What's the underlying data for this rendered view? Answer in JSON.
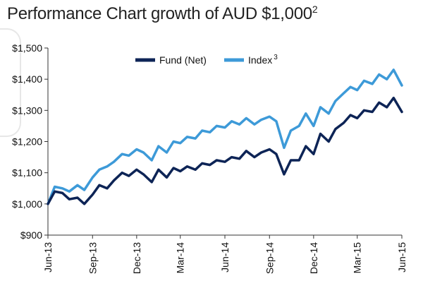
{
  "title": {
    "text": "Performance Chart growth of AUD $1,000",
    "superscript": "2"
  },
  "colors": {
    "fund": "#0d2456",
    "index": "#3d9ad8",
    "axis": "#333333",
    "gridline": "#999999"
  },
  "chart_data": {
    "type": "line",
    "title": "Performance Chart growth of AUD $1,000",
    "xlabel": "",
    "ylabel": "",
    "ylim": [
      900,
      1500
    ],
    "xlim": [
      "2013-06",
      "2015-06"
    ],
    "grid": false,
    "legend_placement": "top-center",
    "y_ticks": [
      "$900",
      "$1,000",
      "$1,100",
      "$1,200",
      "$1,300",
      "$1,400",
      "$1,500"
    ],
    "y_tick_values": [
      900,
      1000,
      1100,
      1200,
      1300,
      1400,
      1500
    ],
    "x_ticks": [
      "Jun-13",
      "Sep-13",
      "Dec-13",
      "Mar-14",
      "Jun-14",
      "Sep-14",
      "Dec-14",
      "Mar-15",
      "Jun-15"
    ],
    "x_tick_values": [
      "2013-06",
      "2013-09",
      "2013-12",
      "2014-03",
      "2014-06",
      "2014-09",
      "2014-12",
      "2015-03",
      "2015-06"
    ],
    "series": [
      {
        "name": "Fund (Net)",
        "name_sup": "",
        "x": [
          "2013-06-01",
          "2013-06-15",
          "2013-07-01",
          "2013-07-15",
          "2013-08-01",
          "2013-08-15",
          "2013-09-01",
          "2013-09-15",
          "2013-10-01",
          "2013-10-15",
          "2013-11-01",
          "2013-11-15",
          "2013-12-01",
          "2013-12-15",
          "2014-01-01",
          "2014-01-15",
          "2014-02-01",
          "2014-02-15",
          "2014-03-01",
          "2014-03-15",
          "2014-04-01",
          "2014-04-15",
          "2014-05-01",
          "2014-05-15",
          "2014-06-01",
          "2014-06-15",
          "2014-07-01",
          "2014-07-15",
          "2014-08-01",
          "2014-08-15",
          "2014-09-01",
          "2014-09-15",
          "2014-10-01",
          "2014-10-15",
          "2014-11-01",
          "2014-11-15",
          "2014-12-01",
          "2014-12-15",
          "2015-01-01",
          "2015-01-15",
          "2015-02-01",
          "2015-02-15",
          "2015-03-01",
          "2015-03-15",
          "2015-04-01",
          "2015-04-15",
          "2015-05-01",
          "2015-05-15",
          "2015-06-01"
        ],
        "values": [
          1000,
          1040,
          1035,
          1015,
          1020,
          1000,
          1030,
          1060,
          1050,
          1075,
          1100,
          1090,
          1110,
          1095,
          1070,
          1110,
          1085,
          1115,
          1105,
          1120,
          1110,
          1130,
          1125,
          1140,
          1135,
          1150,
          1145,
          1170,
          1150,
          1165,
          1175,
          1160,
          1095,
          1140,
          1140,
          1185,
          1160,
          1225,
          1200,
          1240,
          1260,
          1285,
          1275,
          1300,
          1295,
          1325,
          1310,
          1340,
          1295
        ]
      },
      {
        "name": "Index",
        "name_sup": "3",
        "x": [
          "2013-06-01",
          "2013-06-15",
          "2013-07-01",
          "2013-07-15",
          "2013-08-01",
          "2013-08-15",
          "2013-09-01",
          "2013-09-15",
          "2013-10-01",
          "2013-10-15",
          "2013-11-01",
          "2013-11-15",
          "2013-12-01",
          "2013-12-15",
          "2014-01-01",
          "2014-01-15",
          "2014-02-01",
          "2014-02-15",
          "2014-03-01",
          "2014-03-15",
          "2014-04-01",
          "2014-04-15",
          "2014-05-01",
          "2014-05-15",
          "2014-06-01",
          "2014-06-15",
          "2014-07-01",
          "2014-07-15",
          "2014-08-01",
          "2014-08-15",
          "2014-09-01",
          "2014-09-15",
          "2014-10-01",
          "2014-10-15",
          "2014-11-01",
          "2014-11-15",
          "2014-12-01",
          "2014-12-15",
          "2015-01-01",
          "2015-01-15",
          "2015-02-01",
          "2015-02-15",
          "2015-03-01",
          "2015-03-15",
          "2015-04-01",
          "2015-04-15",
          "2015-05-01",
          "2015-05-15",
          "2015-06-01"
        ],
        "values": [
          1000,
          1055,
          1050,
          1040,
          1060,
          1045,
          1085,
          1110,
          1120,
          1135,
          1160,
          1155,
          1175,
          1165,
          1140,
          1185,
          1165,
          1200,
          1195,
          1215,
          1210,
          1235,
          1230,
          1250,
          1245,
          1265,
          1255,
          1275,
          1255,
          1270,
          1280,
          1265,
          1180,
          1235,
          1250,
          1290,
          1250,
          1310,
          1290,
          1330,
          1355,
          1375,
          1365,
          1395,
          1385,
          1415,
          1400,
          1430,
          1380
        ]
      }
    ]
  }
}
